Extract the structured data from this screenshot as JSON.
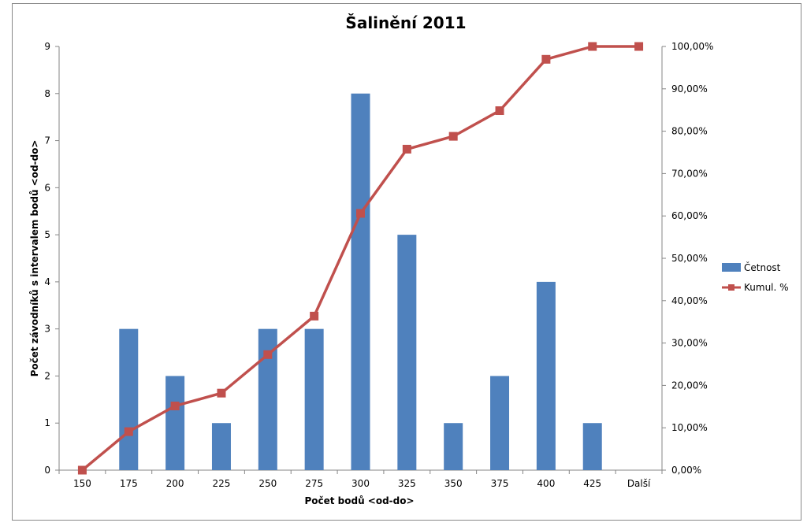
{
  "chart_data": {
    "type": "bar",
    "title": "Šalinění 2011",
    "xlabel": "Počet bodů <od-do>",
    "ylabel": "Počet závodníků s intervalem bodů <od-do>",
    "categories": [
      "150",
      "175",
      "200",
      "225",
      "250",
      "275",
      "300",
      "325",
      "350",
      "375",
      "400",
      "425",
      "Další"
    ],
    "series": [
      {
        "name": "Četnost",
        "type": "bar",
        "axis": "left",
        "color": "#4f81bd",
        "values": [
          0,
          3,
          2,
          1,
          3,
          3,
          8,
          5,
          1,
          2,
          4,
          1,
          0
        ]
      },
      {
        "name": "Kumul. %",
        "type": "line",
        "axis": "right",
        "color": "#c0504d",
        "marker": "square",
        "values": [
          0,
          9.09,
          15.15,
          18.18,
          27.27,
          36.36,
          60.61,
          75.76,
          78.79,
          84.85,
          96.97,
          100,
          100
        ]
      }
    ],
    "ylim": [
      0,
      9
    ],
    "yticks": [
      "0",
      "1",
      "2",
      "3",
      "4",
      "5",
      "6",
      "7",
      "8",
      "9"
    ],
    "y2lim": [
      0,
      100
    ],
    "y2ticks": [
      "0,00%",
      "10,00%",
      "20,00%",
      "30,00%",
      "40,00%",
      "50,00%",
      "60,00%",
      "70,00%",
      "80,00%",
      "90,00%",
      "100,00%"
    ],
    "grid": false,
    "legend": "right"
  }
}
